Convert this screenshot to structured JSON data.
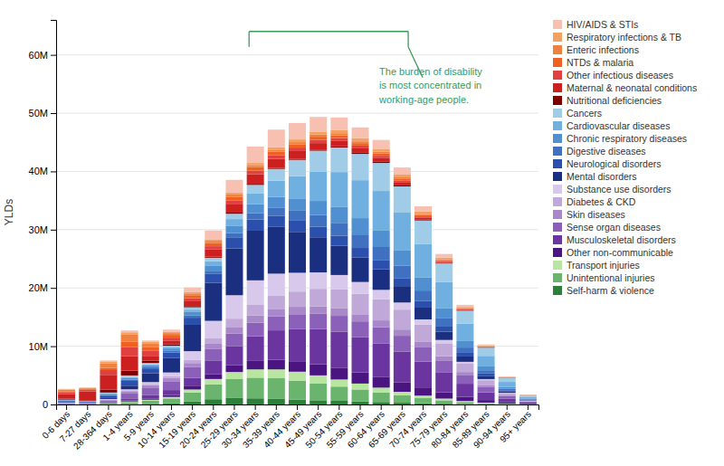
{
  "chart_data": {
    "type": "bar",
    "stacked": true,
    "grid": true,
    "legend": "right",
    "y_label": "YLDs",
    "annotations": [
      {
        "text": "The burden of disability\nis most concentrated in\nworking-age people.",
        "color": "#3a9a5c"
      }
    ],
    "ylim": [
      0,
      66
    ],
    "yticks": [
      0,
      {
        "value": 10,
        "label": "10M"
      },
      {
        "value": 20,
        "label": "20M"
      },
      {
        "value": 30,
        "label": "30M"
      },
      {
        "value": 40,
        "label": "40M"
      },
      {
        "value": 50,
        "label": "50M"
      },
      {
        "value": 60,
        "label": "60M"
      }
    ],
    "categories": [
      "0-6 days",
      "7-27 days",
      "28-364 days",
      "1-4 years",
      "5-9 years",
      "10-14 years",
      "15-19 years",
      "20-24 years",
      "25-29 years",
      "30-34 years",
      "35-39 years",
      "40-44 years",
      "45-49 years",
      "50-54 years",
      "55-59 years",
      "60-64 years",
      "65-69 years",
      "70-74 years",
      "75-79 years",
      "80-84 years",
      "85-89 years",
      "90-94 years",
      "95+ years"
    ],
    "series": [
      {
        "name": "Self-harm & violence",
        "color": "#2d7f3c",
        "values": [
          0.01,
          0.01,
          0.02,
          0.06,
          0.1,
          0.18,
          0.5,
          0.9,
          1.1,
          1.05,
          0.95,
          0.85,
          0.72,
          0.62,
          0.52,
          0.42,
          0.3,
          0.2,
          0.13,
          0.08,
          0.04,
          0.02,
          0.01
        ]
      },
      {
        "name": "Unintentional injuries",
        "color": "#6ab46e",
        "values": [
          0.02,
          0.02,
          0.12,
          0.35,
          0.55,
          0.85,
          1.55,
          2.55,
          3.25,
          3.55,
          3.55,
          3.25,
          2.85,
          2.45,
          2.05,
          1.65,
          1.25,
          0.88,
          0.58,
          0.34,
          0.19,
          0.08,
          0.03
        ]
      },
      {
        "name": "Transport injuries",
        "color": "#b8e6a0",
        "values": [
          0.01,
          0.01,
          0.03,
          0.1,
          0.16,
          0.26,
          0.52,
          0.92,
          1.22,
          1.42,
          1.52,
          1.52,
          1.42,
          1.22,
          1.02,
          0.82,
          0.62,
          0.44,
          0.3,
          0.17,
          0.09,
          0.04,
          0.01
        ]
      },
      {
        "name": "Other non-communicable",
        "color": "#4a1580",
        "values": [
          0.03,
          0.02,
          0.07,
          0.18,
          0.22,
          0.33,
          0.55,
          0.85,
          1.15,
          1.45,
          1.65,
          1.8,
          1.9,
          1.95,
          1.9,
          1.8,
          1.65,
          1.4,
          1.08,
          0.72,
          0.44,
          0.21,
          0.07
        ]
      },
      {
        "name": "Musculoskeletal disorders",
        "color": "#6b35a0",
        "values": [
          0.05,
          0.03,
          0.12,
          0.35,
          0.55,
          0.85,
          1.45,
          2.25,
          3.25,
          4.25,
          5.05,
          5.55,
          6.05,
          6.25,
          6.05,
          5.75,
          5.25,
          4.45,
          3.45,
          2.25,
          1.32,
          0.61,
          0.21
        ]
      },
      {
        "name": "Sense organ diseases",
        "color": "#8b60b8",
        "values": [
          0.1,
          0.08,
          0.32,
          0.82,
          1.22,
          1.52,
          1.82,
          2.02,
          2.22,
          2.32,
          2.42,
          2.52,
          2.62,
          2.72,
          2.72,
          2.82,
          2.72,
          2.52,
          2.02,
          1.52,
          0.97,
          0.46,
          0.16
        ]
      },
      {
        "name": "Skin diseases",
        "color": "#a888c8",
        "values": [
          0.05,
          0.04,
          0.16,
          0.42,
          0.52,
          0.57,
          0.72,
          0.92,
          1.12,
          1.22,
          1.27,
          1.27,
          1.27,
          1.27,
          1.22,
          1.17,
          1.07,
          0.92,
          0.72,
          0.49,
          0.31,
          0.14,
          0.05
        ]
      },
      {
        "name": "Diabetes & CKD",
        "color": "#c0a8d8",
        "values": [
          0.02,
          0.01,
          0.05,
          0.16,
          0.21,
          0.31,
          0.52,
          0.92,
          1.42,
          1.82,
          2.22,
          2.62,
          3.02,
          3.32,
          3.52,
          3.62,
          3.42,
          2.92,
          2.22,
          1.42,
          0.81,
          0.36,
          0.12
        ]
      },
      {
        "name": "Substance use disorders",
        "color": "#d8c8ec",
        "values": [
          0.02,
          0.01,
          0.05,
          0.16,
          0.31,
          0.62,
          1.52,
          3.02,
          4.02,
          4.22,
          3.82,
          3.22,
          2.82,
          2.42,
          2.02,
          1.62,
          1.22,
          0.87,
          0.57,
          0.33,
          0.19,
          0.08,
          0.03
        ]
      },
      {
        "name": "Mental disorders",
        "color": "#1a2f80",
        "values": [
          0.05,
          0.03,
          0.16,
          0.62,
          1.52,
          2.52,
          4.52,
          6.52,
          8.02,
          8.52,
          8.02,
          7.02,
          6.02,
          5.02,
          4.22,
          3.52,
          2.82,
          2.02,
          1.42,
          0.92,
          0.56,
          0.26,
          0.08
        ]
      },
      {
        "name": "Neurological disorders",
        "color": "#2a4fac",
        "values": [
          0.22,
          0.16,
          0.42,
          0.82,
          0.82,
          0.92,
          1.22,
          1.52,
          1.82,
          1.92,
          1.92,
          1.92,
          1.82,
          1.72,
          1.62,
          1.52,
          1.37,
          1.12,
          0.87,
          0.62,
          0.39,
          0.18,
          0.06
        ]
      },
      {
        "name": "Digestive diseases",
        "color": "#4070c0",
        "values": [
          0.05,
          0.04,
          0.11,
          0.21,
          0.21,
          0.26,
          0.36,
          0.56,
          0.81,
          1.11,
          1.41,
          1.71,
          2.01,
          2.21,
          2.31,
          2.31,
          2.11,
          1.81,
          1.41,
          0.91,
          0.56,
          0.26,
          0.09
        ]
      },
      {
        "name": "Chronic respiratory diseases",
        "color": "#5090d0",
        "values": [
          0.1,
          0.08,
          0.21,
          0.31,
          0.36,
          0.41,
          0.61,
          0.91,
          1.21,
          1.51,
          1.81,
          2.11,
          2.41,
          2.71,
          2.81,
          2.81,
          2.61,
          2.21,
          1.71,
          1.11,
          0.66,
          0.31,
          0.1
        ]
      },
      {
        "name": "Cardiovascular diseases",
        "color": "#70b0e0",
        "values": [
          0.05,
          0.03,
          0.09,
          0.16,
          0.16,
          0.21,
          0.41,
          0.71,
          1.21,
          1.91,
          2.81,
          3.81,
          5.01,
          6.01,
          6.51,
          6.81,
          6.51,
          5.81,
          4.51,
          3.01,
          1.81,
          0.86,
          0.31
        ]
      },
      {
        "name": "Cancers",
        "color": "#a0cce8",
        "values": [
          0.05,
          0.03,
          0.11,
          0.26,
          0.21,
          0.26,
          0.41,
          0.61,
          0.91,
          1.41,
          2.01,
          2.81,
          3.61,
          4.21,
          4.51,
          4.81,
          4.51,
          4.01,
          3.21,
          2.21,
          1.41,
          0.71,
          0.26
        ]
      },
      {
        "name": "Nutritional deficiencies",
        "color": "#800000",
        "values": [
          0.16,
          0.13,
          0.52,
          0.82,
          0.41,
          0.26,
          0.21,
          0.19,
          0.19,
          0.19,
          0.19,
          0.19,
          0.19,
          0.19,
          0.19,
          0.19,
          0.16,
          0.13,
          0.09,
          0.06,
          0.04,
          0.02,
          0.01
        ]
      },
      {
        "name": "Maternal & neonatal conditions",
        "color": "#cc2020",
        "values": [
          0.82,
          1.52,
          2.52,
          2.52,
          0.82,
          0.57,
          0.82,
          1.22,
          1.52,
          1.62,
          1.52,
          1.32,
          1.12,
          0.92,
          0.77,
          0.62,
          0.47,
          0.31,
          0.19,
          0.11,
          0.06,
          0.02,
          0.01
        ]
      },
      {
        "name": "Other infectious diseases",
        "color": "#e04040",
        "values": [
          0.31,
          0.26,
          0.82,
          1.52,
          0.92,
          0.57,
          0.52,
          0.57,
          0.6,
          0.62,
          0.62,
          0.6,
          0.57,
          0.52,
          0.47,
          0.42,
          0.34,
          0.26,
          0.17,
          0.11,
          0.06,
          0.03,
          0.01
        ]
      },
      {
        "name": "NTDs & malaria",
        "color": "#f06020",
        "values": [
          0.16,
          0.11,
          0.36,
          0.92,
          0.62,
          0.47,
          0.52,
          0.57,
          0.62,
          0.62,
          0.62,
          0.57,
          0.52,
          0.47,
          0.42,
          0.37,
          0.29,
          0.21,
          0.14,
          0.09,
          0.04,
          0.02,
          0.01
        ]
      },
      {
        "name": "Enteric infections",
        "color": "#f08040",
        "values": [
          0.21,
          0.16,
          0.82,
          1.22,
          0.62,
          0.31,
          0.31,
          0.36,
          0.36,
          0.36,
          0.36,
          0.36,
          0.36,
          0.36,
          0.31,
          0.31,
          0.29,
          0.23,
          0.16,
          0.11,
          0.06,
          0.03,
          0.01
        ]
      },
      {
        "name": "Respiratory infections & TB",
        "color": "#f4a060",
        "values": [
          0.11,
          0.09,
          0.31,
          0.41,
          0.21,
          0.19,
          0.21,
          0.26,
          0.31,
          0.36,
          0.41,
          0.47,
          0.52,
          0.57,
          0.57,
          0.52,
          0.47,
          0.37,
          0.26,
          0.16,
          0.11,
          0.05,
          0.02
        ]
      },
      {
        "name": "HIV/AIDS & STIs",
        "color": "#f8c0b0",
        "values": [
          0.09,
          0.06,
          0.16,
          0.31,
          0.26,
          0.41,
          0.82,
          1.52,
          2.22,
          2.82,
          3.02,
          2.82,
          2.52,
          2.12,
          1.82,
          1.52,
          1.22,
          0.92,
          0.62,
          0.36,
          0.19,
          0.08,
          0.03
        ]
      }
    ]
  }
}
